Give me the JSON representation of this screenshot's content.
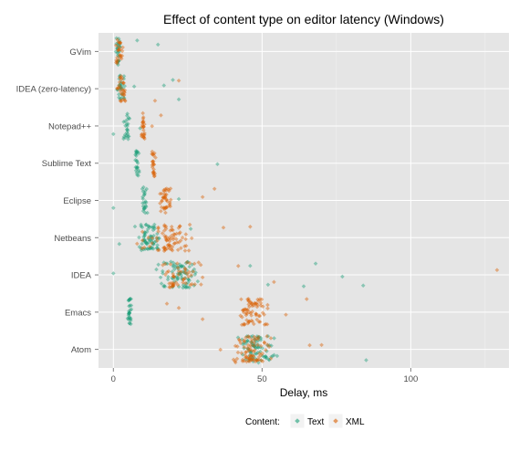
{
  "chart_data": {
    "type": "scatter",
    "title": "Effect of content type on editor latency (Windows)",
    "xlabel": "Delay, ms",
    "ylabel": "",
    "x_ticks": [
      0,
      50,
      100
    ],
    "xlim": [
      -5,
      133
    ],
    "grid": true,
    "legend": {
      "title": "Content:",
      "position": "bottom"
    },
    "categories": [
      "GVim",
      "IDEA (zero-latency)",
      "Notepad++",
      "Sublime Text",
      "Eclipse",
      "Netbeans",
      "IDEA",
      "Emacs",
      "Atom"
    ],
    "series": [
      {
        "name": "Text",
        "color": "#1b9e77",
        "values": [
          {
            "category": "GVim",
            "center": 1.5,
            "spread": 1.5,
            "count": 26,
            "outliers": [
              8,
              15
            ]
          },
          {
            "category": "IDEA (zero-latency)",
            "center": 2.5,
            "spread": 2.0,
            "count": 28,
            "outliers": [
              7,
              17,
              20,
              22
            ]
          },
          {
            "category": "Notepad++",
            "center": 4.5,
            "spread": 1.5,
            "count": 24,
            "outliers": [
              0,
              9
            ]
          },
          {
            "category": "Sublime Text",
            "center": 8.0,
            "spread": 1.0,
            "count": 24,
            "outliers": [
              35
            ]
          },
          {
            "category": "Eclipse",
            "center": 10.5,
            "spread": 1.5,
            "count": 24,
            "outliers": [
              0,
              22
            ]
          },
          {
            "category": "Netbeans",
            "center": 12.0,
            "spread": 5.0,
            "count": 70,
            "outliers": [
              2,
              26
            ]
          },
          {
            "category": "IDEA",
            "center": 22.0,
            "spread": 10.0,
            "count": 80,
            "outliers": [
              0,
              46,
              52,
              64,
              68,
              77,
              84
            ]
          },
          {
            "category": "Emacs",
            "center": 5.5,
            "spread": 0.8,
            "count": 30,
            "outliers": []
          },
          {
            "category": "Atom",
            "center": 48.0,
            "spread": 9.0,
            "count": 80,
            "outliers": [
              85
            ]
          }
        ]
      },
      {
        "name": "XML",
        "color": "#d95f02",
        "values": [
          {
            "category": "GVim",
            "center": 2.0,
            "spread": 1.5,
            "count": 26,
            "outliers": []
          },
          {
            "category": "IDEA (zero-latency)",
            "center": 3.0,
            "spread": 2.5,
            "count": 30,
            "outliers": [
              14,
              22
            ]
          },
          {
            "category": "Notepad++",
            "center": 10.0,
            "spread": 1.0,
            "count": 24,
            "outliers": [
              13,
              16
            ]
          },
          {
            "category": "Sublime Text",
            "center": 13.5,
            "spread": 1.0,
            "count": 24,
            "outliers": []
          },
          {
            "category": "Eclipse",
            "center": 17.5,
            "spread": 2.5,
            "count": 40,
            "outliers": [
              30,
              34
            ]
          },
          {
            "category": "Netbeans",
            "center": 18.0,
            "spread": 12.0,
            "count": 80,
            "outliers": [
              37,
              46
            ]
          },
          {
            "category": "IDEA",
            "center": 22.0,
            "spread": 10.0,
            "count": 50,
            "outliers": [
              30,
              42,
              54,
              129
            ]
          },
          {
            "category": "Emacs",
            "center": 46.5,
            "spread": 8.0,
            "count": 70,
            "outliers": [
              18,
              22,
              30,
              58,
              65
            ]
          },
          {
            "category": "Atom",
            "center": 47.0,
            "spread": 10.0,
            "count": 80,
            "outliers": [
              36,
              66,
              70
            ]
          }
        ]
      }
    ]
  }
}
